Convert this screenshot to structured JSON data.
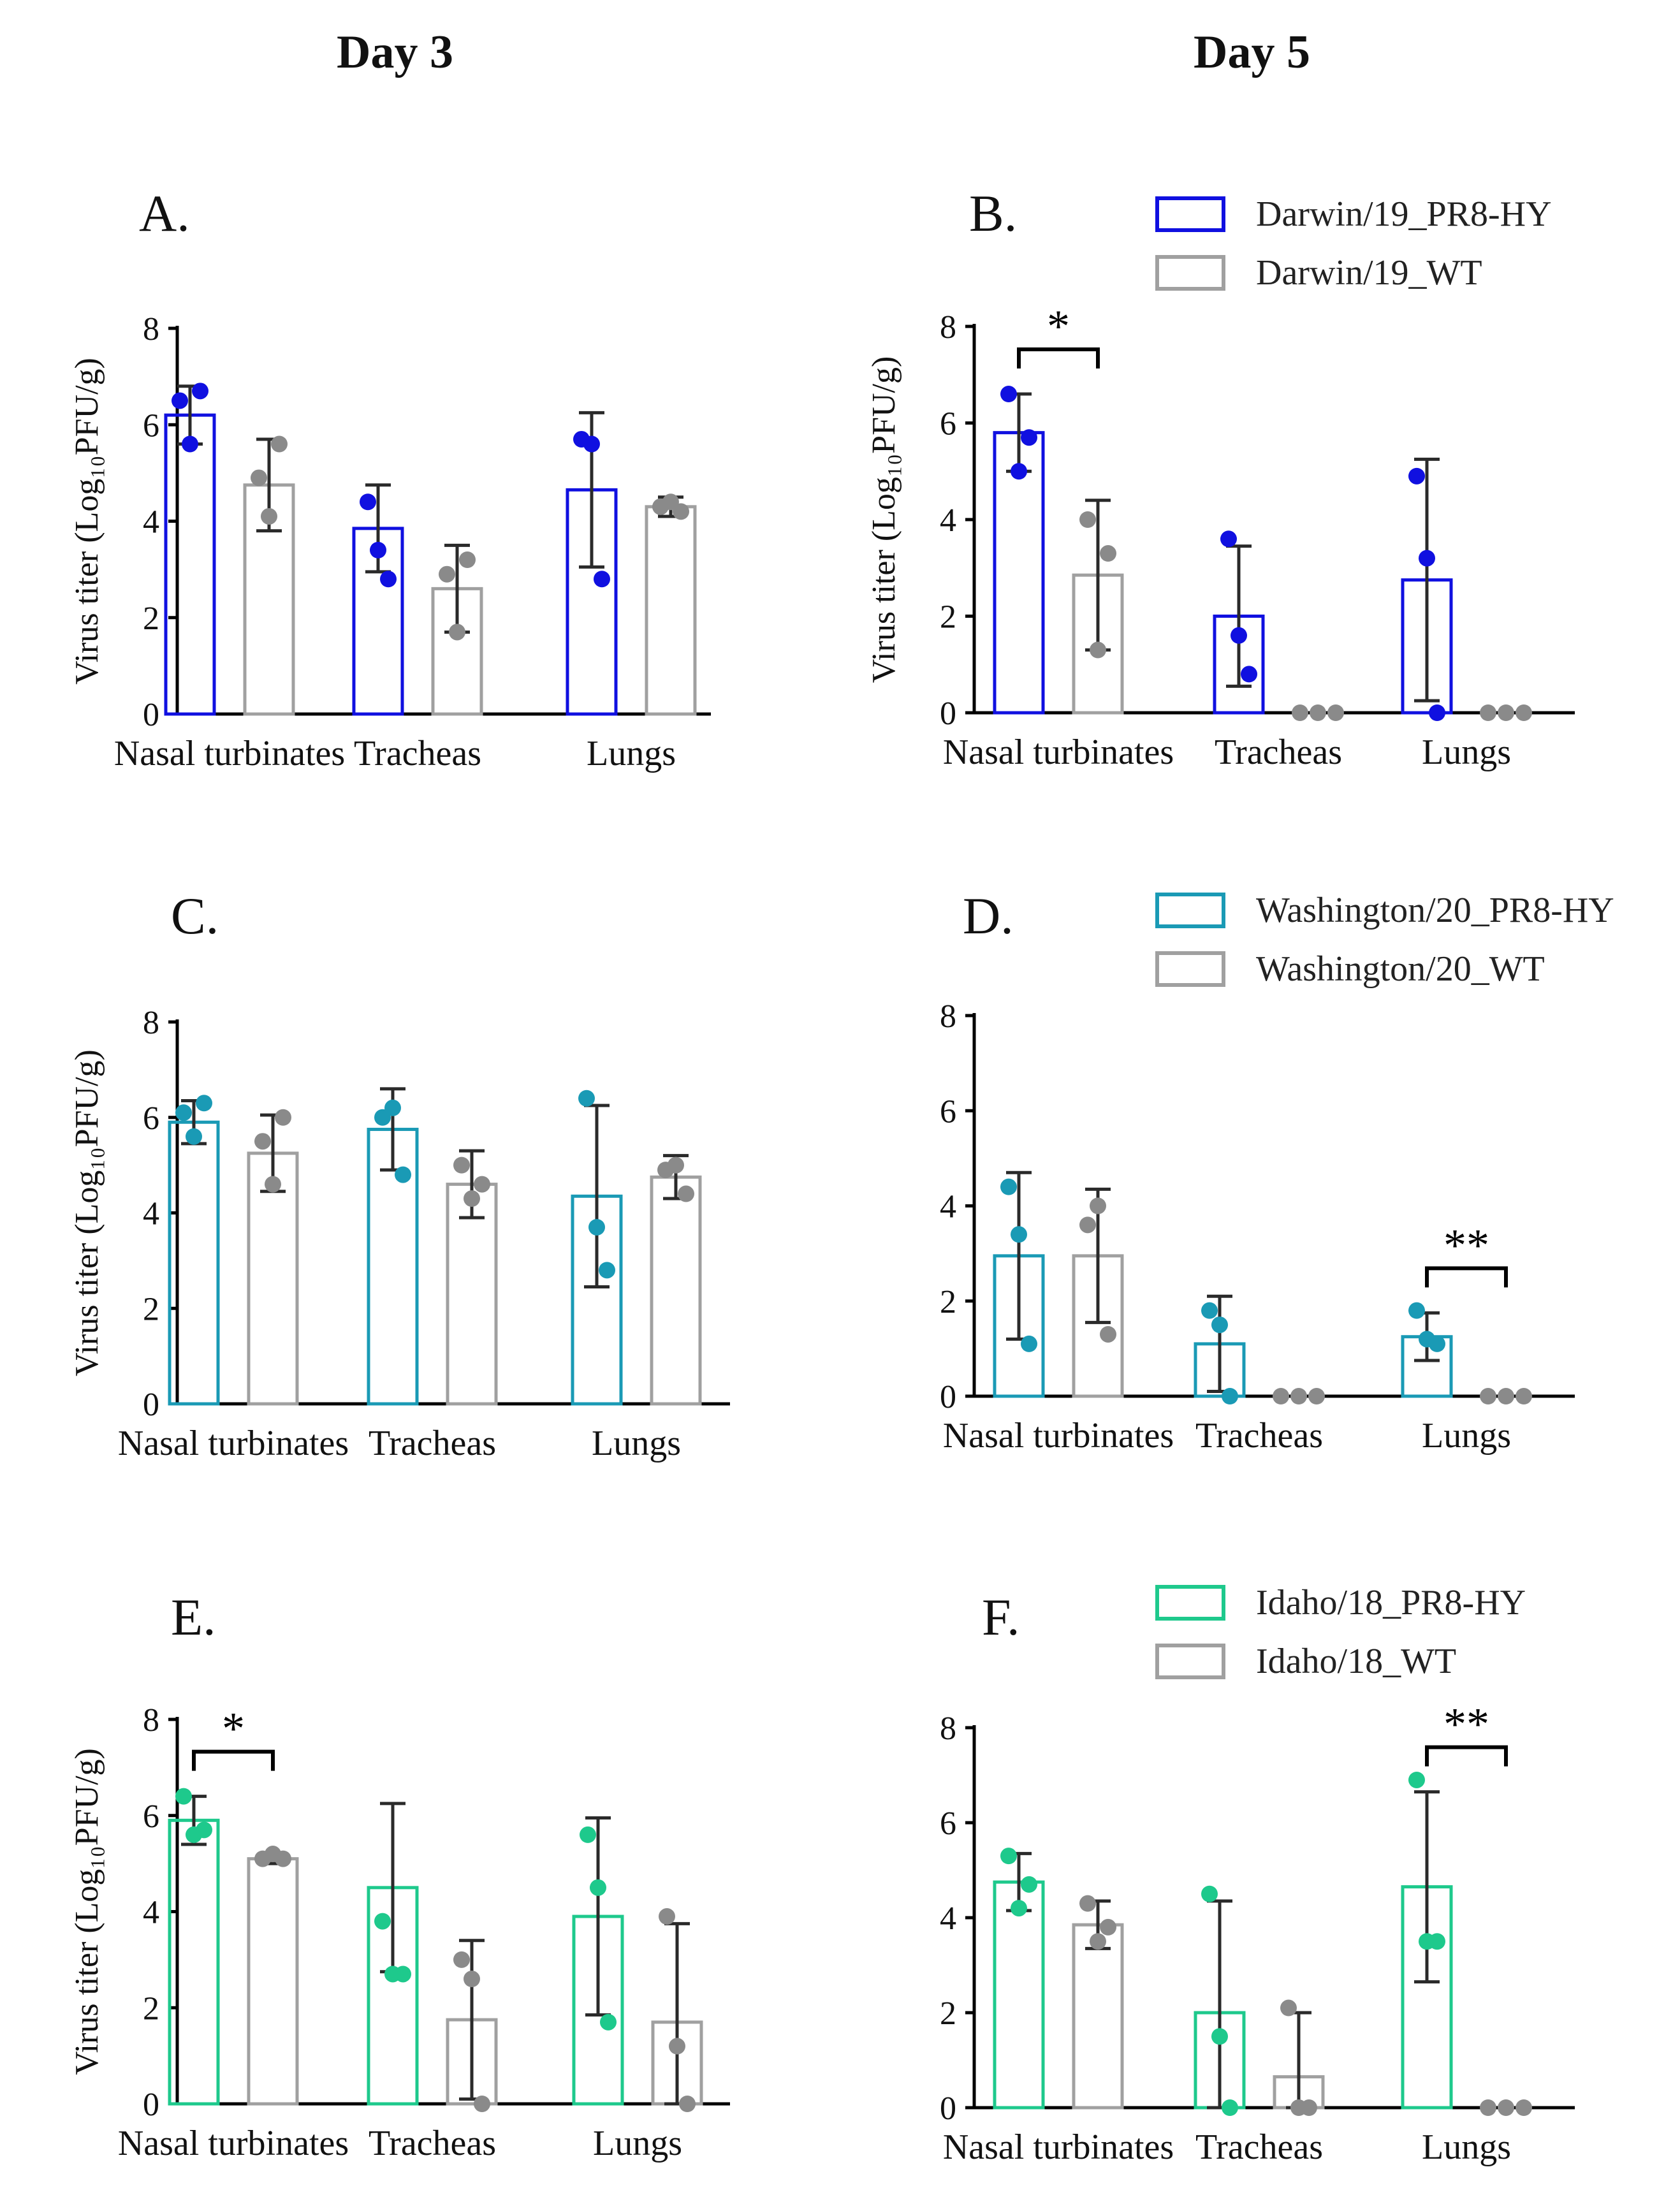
{
  "columns": [
    {
      "id": "day3",
      "title": "Day 3"
    },
    {
      "id": "day5",
      "title": "Day 5"
    }
  ],
  "colors": {
    "hy_blue": "#1010e0",
    "hy_teal": "#1a9ab5",
    "hy_green": "#1ec98c",
    "wt_bar": "#a0a0a0",
    "wt_dot": "#8a8a8a",
    "axis": "#000000",
    "errbar": "#2a2a2a"
  },
  "panels": [
    {
      "id": "A",
      "label": "A.",
      "hy_color": "#1010e0",
      "ylabel": "Virus titer (Log₁₀PFU/g)",
      "ylim": [
        0,
        8
      ],
      "yticks": [
        0,
        2,
        4,
        6,
        8
      ],
      "categories": [
        "Nasal turbinates",
        "Tracheas",
        "Lungs"
      ],
      "legend": null,
      "chart_data": {
        "type": "bar",
        "categories": [
          "Nasal turbinates",
          "Tracheas",
          "Lungs"
        ],
        "xlabel": "",
        "ylabel": "Virus titer (Log₁₀PFU/g)",
        "ylim": [
          0,
          8
        ],
        "series": [
          {
            "name": "PR8-HY",
            "values": [
              6.2,
              3.85,
              4.65
            ],
            "err": [
              0.6,
              0.9,
              1.6
            ],
            "points": [
              [
                6.5,
                5.6,
                6.7
              ],
              [
                4.4,
                3.4,
                2.8
              ],
              [
                5.7,
                5.6,
                2.8
              ]
            ]
          },
          {
            "name": "WT",
            "values": [
              4.75,
              2.6,
              4.3
            ],
            "err": [
              0.95,
              0.9,
              0.2
            ],
            "points": [
              [
                4.9,
                4.1,
                5.6
              ],
              [
                2.9,
                1.7,
                3.2
              ],
              [
                4.3,
                4.4,
                4.2
              ]
            ]
          }
        ],
        "significance": []
      }
    },
    {
      "id": "B",
      "label": "B.",
      "hy_color": "#1010e0",
      "ylabel": "Virus titer (Log₁₀PFU/g)",
      "ylim": [
        0,
        8
      ],
      "yticks": [
        0,
        2,
        4,
        6,
        8
      ],
      "categories": [
        "Nasal turbinates",
        "Tracheas",
        "Lungs"
      ],
      "legend": {
        "hy": "Darwin/19_PR8-HY",
        "wt": "Darwin/19_WT"
      },
      "chart_data": {
        "type": "bar",
        "categories": [
          "Nasal turbinates",
          "Tracheas",
          "Lungs"
        ],
        "xlabel": "",
        "ylabel": "Virus titer (Log₁₀PFU/g)",
        "ylim": [
          0,
          8
        ],
        "series": [
          {
            "name": "Darwin/19_PR8-HY",
            "values": [
              5.8,
              2.0,
              2.75
            ],
            "err": [
              0.8,
              1.45,
              2.5
            ],
            "points": [
              [
                6.6,
                5.0,
                5.7
              ],
              [
                3.6,
                1.6,
                0.8
              ],
              [
                4.9,
                3.2,
                0.0
              ]
            ]
          },
          {
            "name": "Darwin/19_WT",
            "values": [
              2.85,
              0.0,
              0.0
            ],
            "err": [
              1.55,
              0,
              0
            ],
            "points": [
              [
                4.0,
                1.3,
                3.3
              ],
              [
                0,
                0,
                0
              ],
              [
                0,
                0,
                0
              ]
            ]
          }
        ],
        "significance": [
          {
            "category": 0,
            "text": "*"
          }
        ]
      }
    },
    {
      "id": "C",
      "label": "C.",
      "hy_color": "#1a9ab5",
      "ylabel": "Virus titer (Log₁₀PFU/g)",
      "ylim": [
        0,
        8
      ],
      "yticks": [
        0,
        2,
        4,
        6,
        8
      ],
      "categories": [
        "Nasal turbinates",
        "Tracheas",
        "Lungs"
      ],
      "legend": null,
      "chart_data": {
        "type": "bar",
        "categories": [
          "Nasal turbinates",
          "Tracheas",
          "Lungs"
        ],
        "xlabel": "",
        "ylabel": "Virus titer (Log₁₀PFU/g)",
        "ylim": [
          0,
          8
        ],
        "series": [
          {
            "name": "PR8-HY",
            "values": [
              5.9,
              5.75,
              4.35
            ],
            "err": [
              0.45,
              0.85,
              1.9
            ],
            "points": [
              [
                6.1,
                5.6,
                6.3
              ],
              [
                6.0,
                6.2,
                4.8
              ],
              [
                6.4,
                3.7,
                2.8
              ]
            ]
          },
          {
            "name": "WT",
            "values": [
              5.25,
              4.6,
              4.75
            ],
            "err": [
              0.8,
              0.7,
              0.45
            ],
            "points": [
              [
                5.5,
                4.6,
                6.0
              ],
              [
                5.0,
                4.3,
                4.6
              ],
              [
                4.9,
                5.0,
                4.4
              ]
            ]
          }
        ],
        "significance": []
      }
    },
    {
      "id": "D",
      "label": "D.",
      "hy_color": "#1a9ab5",
      "ylabel": "",
      "ylim": [
        0,
        8
      ],
      "yticks": [
        0,
        2,
        4,
        6,
        8
      ],
      "categories": [
        "Nasal turbinates",
        "Tracheas",
        "Lungs"
      ],
      "legend": {
        "hy": "Washington/20_PR8-HY",
        "wt": "Washington/20_WT"
      },
      "chart_data": {
        "type": "bar",
        "categories": [
          "Nasal turbinates",
          "Tracheas",
          "Lungs"
        ],
        "xlabel": "",
        "ylabel": "",
        "ylim": [
          0,
          8
        ],
        "series": [
          {
            "name": "Washington/20_PR8-HY",
            "values": [
              2.95,
              1.1,
              1.25
            ],
            "err": [
              1.75,
              1.0,
              0.5
            ],
            "points": [
              [
                4.4,
                3.4,
                1.1
              ],
              [
                1.8,
                1.5,
                0.0
              ],
              [
                1.8,
                1.2,
                1.1
              ]
            ]
          },
          {
            "name": "Washington/20_WT",
            "values": [
              2.95,
              0.0,
              0.0
            ],
            "err": [
              1.4,
              0,
              0
            ],
            "points": [
              [
                3.6,
                4.0,
                1.3
              ],
              [
                0,
                0,
                0
              ],
              [
                0,
                0,
                0
              ]
            ]
          }
        ],
        "significance": [
          {
            "category": 2,
            "text": "**"
          }
        ]
      }
    },
    {
      "id": "E",
      "label": "E.",
      "hy_color": "#1ec98c",
      "ylabel": "Virus titer (Log₁₀PFU/g)",
      "ylim": [
        0,
        8
      ],
      "yticks": [
        0,
        2,
        4,
        6,
        8
      ],
      "categories": [
        "Nasal turbinates",
        "Tracheas",
        "Lungs"
      ],
      "legend": null,
      "chart_data": {
        "type": "bar",
        "categories": [
          "Nasal turbinates",
          "Tracheas",
          "Lungs"
        ],
        "xlabel": "",
        "ylabel": "Virus titer (Log₁₀PFU/g)",
        "ylim": [
          0,
          8
        ],
        "series": [
          {
            "name": "PR8-HY",
            "values": [
              5.9,
              4.5,
              3.9
            ],
            "err": [
              0.5,
              1.75,
              2.05
            ],
            "points": [
              [
                6.4,
                5.6,
                5.7
              ],
              [
                3.8,
                2.7,
                2.7
              ],
              [
                5.6,
                4.5,
                1.7
              ]
            ]
          },
          {
            "name": "WT",
            "values": [
              5.1,
              1.75,
              1.7
            ],
            "err": [
              0.1,
              1.65,
              2.05
            ],
            "points": [
              [
                5.1,
                5.2,
                5.1
              ],
              [
                3.0,
                2.6,
                0.0
              ],
              [
                3.9,
                1.2,
                0.0
              ]
            ]
          }
        ],
        "significance": [
          {
            "category": 0,
            "text": "*"
          }
        ]
      }
    },
    {
      "id": "F",
      "label": "F.",
      "hy_color": "#1ec98c",
      "ylabel": "",
      "ylim": [
        0,
        8
      ],
      "yticks": [
        0,
        2,
        4,
        6,
        8
      ],
      "categories": [
        "Nasal turbinates",
        "Tracheas",
        "Lungs"
      ],
      "legend": {
        "hy": "Idaho/18_PR8-HY",
        "wt": "Idaho/18_WT"
      },
      "chart_data": {
        "type": "bar",
        "categories": [
          "Nasal turbinates",
          "Tracheas",
          "Lungs"
        ],
        "xlabel": "",
        "ylabel": "",
        "ylim": [
          0,
          8
        ],
        "series": [
          {
            "name": "Idaho/18_PR8-HY",
            "values": [
              4.75,
              2.0,
              4.65
            ],
            "err": [
              0.6,
              2.35,
              2.0
            ],
            "points": [
              [
                5.3,
                4.2,
                4.7
              ],
              [
                4.5,
                1.5,
                0.0
              ],
              [
                6.9,
                3.5,
                3.5
              ]
            ]
          },
          {
            "name": "Idaho/18_WT",
            "values": [
              3.85,
              0.65,
              0.0
            ],
            "err": [
              0.5,
              1.35,
              0
            ],
            "points": [
              [
                4.3,
                3.5,
                3.8
              ],
              [
                2.1,
                0.0,
                0.0
              ],
              [
                0,
                0,
                0
              ]
            ]
          }
        ],
        "significance": [
          {
            "category": 2,
            "text": "**"
          }
        ]
      }
    }
  ]
}
